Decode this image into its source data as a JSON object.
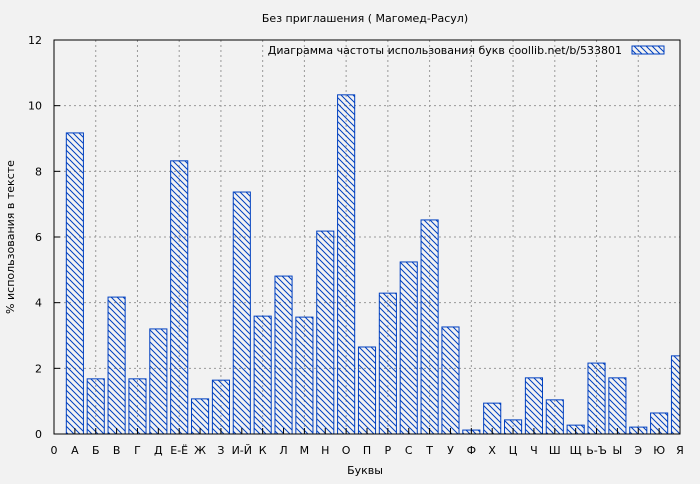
{
  "chart_data": {
    "type": "bar",
    "title": "Без приглашения ( Магомед-Расул)",
    "xlabel": "Буквы",
    "ylabel": "% использования в тексте",
    "legend": {
      "label": "Диаграмма частоты использования букв  coollib.net/b/533801",
      "position": "top-right"
    },
    "ylim": [
      0,
      12
    ],
    "yticks": [
      0,
      2,
      4,
      6,
      8,
      10,
      12
    ],
    "xlim": [
      0,
      30
    ],
    "xtick_labels": [
      "0",
      "А",
      "Б",
      "В",
      "Г",
      "Д",
      "Е-Ё",
      "Ж",
      "З",
      "И-Й",
      "К",
      "Л",
      "М",
      "Н",
      "О",
      "П",
      "Р",
      "С",
      "Т",
      "У",
      "Ф",
      "Х",
      "Ц",
      "Ч",
      "Ш",
      "Щ",
      "Ь-Ъ",
      "Ы",
      "Э",
      "Ю",
      "Я"
    ],
    "categories": [
      "А",
      "Б",
      "В",
      "Г",
      "Д",
      "Е-Ё",
      "Ж",
      "З",
      "И-Й",
      "К",
      "Л",
      "М",
      "Н",
      "О",
      "П",
      "Р",
      "С",
      "Т",
      "У",
      "Ф",
      "Х",
      "Ц",
      "Ч",
      "Ш",
      "Щ",
      "Ь-Ъ",
      "Ы",
      "Э",
      "Ю",
      "Я"
    ],
    "values": [
      9.17,
      1.68,
      4.17,
      1.68,
      3.2,
      8.32,
      1.07,
      1.64,
      7.37,
      3.59,
      4.81,
      3.56,
      6.18,
      10.33,
      2.65,
      4.29,
      5.24,
      6.52,
      3.26,
      0.12,
      0.94,
      0.43,
      1.71,
      1.04,
      0.27,
      2.16,
      1.71,
      0.21,
      0.64,
      2.38
    ],
    "grid": true,
    "bar_color": "#0040c0",
    "fill": "diagonal-hatch"
  }
}
